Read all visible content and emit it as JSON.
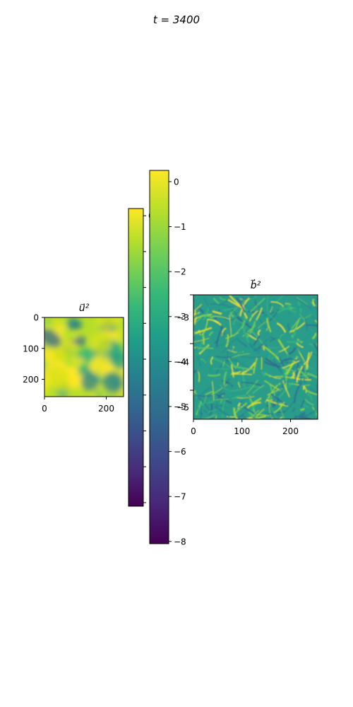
{
  "title": "t = 3400",
  "colormap_stops": [
    "#440154",
    "#482878",
    "#3e4989",
    "#31688e",
    "#26828e",
    "#1f9e89",
    "#35b779",
    "#6ece58",
    "#b5de2b",
    "#fde725"
  ],
  "chart_data": [
    {
      "type": "heatmap",
      "title": "u⃗²",
      "xticks": [
        0,
        200
      ],
      "yticks": [
        0,
        100,
        200
      ],
      "xlim": [
        0,
        256
      ],
      "ylim": [
        256,
        0
      ],
      "colorbar": {
        "ticks": [
          0,
          -1,
          -2,
          -3,
          -4,
          -5,
          -6,
          -7,
          -8
        ],
        "range": [
          -8.1,
          0.2
        ]
      },
      "appearance": "mostly yellow-green with darker blue-teal swirls"
    },
    {
      "type": "heatmap",
      "title": "b⃗²",
      "xticks": [
        0,
        100,
        200
      ],
      "yticks": [
        -3,
        -4,
        -5
      ],
      "xlim": [
        0,
        256
      ],
      "colorbar": {
        "ticks": [
          0,
          -1,
          -2,
          -3,
          -4,
          -5,
          -6,
          -7,
          -8
        ],
        "range": [
          -8.05,
          0.25
        ]
      },
      "appearance": "teal-green background with thin yellow filaments"
    }
  ]
}
